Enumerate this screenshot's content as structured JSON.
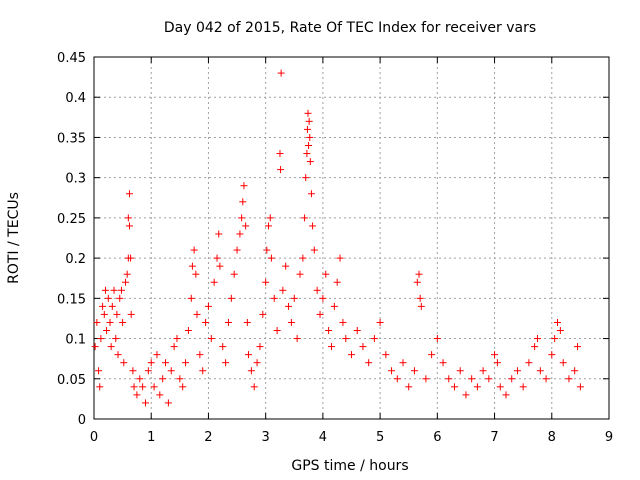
{
  "chart_data": {
    "type": "scatter",
    "title": "Day 042 of 2015, Rate Of TEC Index for receiver vars",
    "xlabel": "GPS time / hours",
    "ylabel": "ROTI / TECUs",
    "xlim": [
      0,
      9
    ],
    "ylim": [
      0,
      0.45
    ],
    "xticks": [
      0,
      1,
      2,
      3,
      4,
      5,
      6,
      7,
      8,
      9
    ],
    "yticks": [
      0,
      0.05,
      0.1,
      0.15,
      0.2,
      0.25,
      0.3,
      0.35,
      0.4,
      0.45
    ],
    "xtick_labels": [
      "0",
      "1",
      "2",
      "3",
      "4",
      "5",
      "6",
      "7",
      "8",
      "9"
    ],
    "ytick_labels": [
      "0",
      "0.05",
      "0.1",
      "0.15",
      "0.2",
      "0.25",
      "0.3",
      "0.35",
      "0.4",
      "0.45"
    ],
    "grid": true,
    "marker": "+",
    "color": "#ff0000",
    "series": [
      {
        "name": "ROTI",
        "points": [
          [
            0.02,
            0.09
          ],
          [
            0.05,
            0.12
          ],
          [
            0.08,
            0.06
          ],
          [
            0.1,
            0.04
          ],
          [
            0.12,
            0.1
          ],
          [
            0.15,
            0.14
          ],
          [
            0.18,
            0.13
          ],
          [
            0.2,
            0.16
          ],
          [
            0.22,
            0.11
          ],
          [
            0.25,
            0.15
          ],
          [
            0.28,
            0.12
          ],
          [
            0.3,
            0.09
          ],
          [
            0.32,
            0.14
          ],
          [
            0.35,
            0.16
          ],
          [
            0.38,
            0.1
          ],
          [
            0.4,
            0.13
          ],
          [
            0.42,
            0.08
          ],
          [
            0.45,
            0.15
          ],
          [
            0.48,
            0.16
          ],
          [
            0.5,
            0.12
          ],
          [
            0.52,
            0.07
          ],
          [
            0.55,
            0.17
          ],
          [
            0.58,
            0.18
          ],
          [
            0.6,
            0.25
          ],
          [
            0.6,
            0.2
          ],
          [
            0.62,
            0.28
          ],
          [
            0.62,
            0.24
          ],
          [
            0.64,
            0.2
          ],
          [
            0.65,
            0.13
          ],
          [
            0.68,
            0.06
          ],
          [
            0.7,
            0.04
          ],
          [
            0.75,
            0.03
          ],
          [
            0.8,
            0.05
          ],
          [
            0.85,
            0.04
          ],
          [
            0.9,
            0.02
          ],
          [
            0.95,
            0.06
          ],
          [
            1.0,
            0.07
          ],
          [
            1.05,
            0.04
          ],
          [
            1.1,
            0.08
          ],
          [
            1.15,
            0.03
          ],
          [
            1.2,
            0.05
          ],
          [
            1.25,
            0.07
          ],
          [
            1.3,
            0.02
          ],
          [
            1.35,
            0.06
          ],
          [
            1.4,
            0.09
          ],
          [
            1.45,
            0.1
          ],
          [
            1.5,
            0.05
          ],
          [
            1.55,
            0.04
          ],
          [
            1.6,
            0.07
          ],
          [
            1.65,
            0.11
          ],
          [
            1.7,
            0.15
          ],
          [
            1.72,
            0.19
          ],
          [
            1.75,
            0.21
          ],
          [
            1.78,
            0.18
          ],
          [
            1.8,
            0.13
          ],
          [
            1.85,
            0.08
          ],
          [
            1.9,
            0.06
          ],
          [
            1.95,
            0.12
          ],
          [
            2.0,
            0.14
          ],
          [
            2.05,
            0.1
          ],
          [
            2.1,
            0.17
          ],
          [
            2.15,
            0.2
          ],
          [
            2.18,
            0.23
          ],
          [
            2.2,
            0.19
          ],
          [
            2.25,
            0.09
          ],
          [
            2.3,
            0.07
          ],
          [
            2.35,
            0.12
          ],
          [
            2.4,
            0.15
          ],
          [
            2.45,
            0.18
          ],
          [
            2.5,
            0.21
          ],
          [
            2.55,
            0.23
          ],
          [
            2.58,
            0.25
          ],
          [
            2.6,
            0.27
          ],
          [
            2.62,
            0.29
          ],
          [
            2.65,
            0.24
          ],
          [
            2.68,
            0.12
          ],
          [
            2.7,
            0.08
          ],
          [
            2.75,
            0.06
          ],
          [
            2.8,
            0.04
          ],
          [
            2.85,
            0.07
          ],
          [
            2.9,
            0.09
          ],
          [
            2.95,
            0.13
          ],
          [
            3.0,
            0.17
          ],
          [
            3.02,
            0.21
          ],
          [
            3.05,
            0.24
          ],
          [
            3.08,
            0.25
          ],
          [
            3.1,
            0.2
          ],
          [
            3.15,
            0.15
          ],
          [
            3.2,
            0.11
          ],
          [
            3.25,
            0.33
          ],
          [
            3.26,
            0.31
          ],
          [
            3.27,
            0.43
          ],
          [
            3.3,
            0.16
          ],
          [
            3.35,
            0.19
          ],
          [
            3.4,
            0.14
          ],
          [
            3.45,
            0.12
          ],
          [
            3.5,
            0.15
          ],
          [
            3.55,
            0.1
          ],
          [
            3.6,
            0.18
          ],
          [
            3.65,
            0.2
          ],
          [
            3.68,
            0.25
          ],
          [
            3.7,
            0.3
          ],
          [
            3.72,
            0.33
          ],
          [
            3.73,
            0.36
          ],
          [
            3.74,
            0.38
          ],
          [
            3.75,
            0.34
          ],
          [
            3.76,
            0.37
          ],
          [
            3.77,
            0.35
          ],
          [
            3.78,
            0.32
          ],
          [
            3.8,
            0.28
          ],
          [
            3.82,
            0.24
          ],
          [
            3.85,
            0.21
          ],
          [
            3.9,
            0.16
          ],
          [
            3.95,
            0.13
          ],
          [
            4.0,
            0.15
          ],
          [
            4.05,
            0.18
          ],
          [
            4.1,
            0.11
          ],
          [
            4.15,
            0.09
          ],
          [
            4.2,
            0.14
          ],
          [
            4.25,
            0.17
          ],
          [
            4.3,
            0.2
          ],
          [
            4.35,
            0.12
          ],
          [
            4.4,
            0.1
          ],
          [
            4.5,
            0.08
          ],
          [
            4.6,
            0.11
          ],
          [
            4.7,
            0.09
          ],
          [
            4.8,
            0.07
          ],
          [
            4.9,
            0.1
          ],
          [
            5.0,
            0.12
          ],
          [
            5.1,
            0.08
          ],
          [
            5.2,
            0.06
          ],
          [
            5.3,
            0.05
          ],
          [
            5.4,
            0.07
          ],
          [
            5.5,
            0.04
          ],
          [
            5.6,
            0.06
          ],
          [
            5.65,
            0.17
          ],
          [
            5.68,
            0.18
          ],
          [
            5.7,
            0.15
          ],
          [
            5.72,
            0.14
          ],
          [
            5.8,
            0.05
          ],
          [
            5.9,
            0.08
          ],
          [
            6.0,
            0.1
          ],
          [
            6.1,
            0.07
          ],
          [
            6.2,
            0.05
          ],
          [
            6.3,
            0.04
          ],
          [
            6.4,
            0.06
          ],
          [
            6.5,
            0.03
          ],
          [
            6.6,
            0.05
          ],
          [
            6.7,
            0.04
          ],
          [
            6.8,
            0.06
          ],
          [
            6.9,
            0.05
          ],
          [
            7.0,
            0.08
          ],
          [
            7.05,
            0.07
          ],
          [
            7.1,
            0.04
          ],
          [
            7.2,
            0.03
          ],
          [
            7.3,
            0.05
          ],
          [
            7.4,
            0.06
          ],
          [
            7.5,
            0.04
          ],
          [
            7.6,
            0.07
          ],
          [
            7.7,
            0.09
          ],
          [
            7.75,
            0.1
          ],
          [
            7.8,
            0.06
          ],
          [
            7.9,
            0.05
          ],
          [
            8.0,
            0.08
          ],
          [
            8.05,
            0.1
          ],
          [
            8.1,
            0.12
          ],
          [
            8.15,
            0.11
          ],
          [
            8.2,
            0.07
          ],
          [
            8.3,
            0.05
          ],
          [
            8.4,
            0.06
          ],
          [
            8.45,
            0.09
          ],
          [
            8.5,
            0.04
          ]
        ]
      }
    ]
  }
}
